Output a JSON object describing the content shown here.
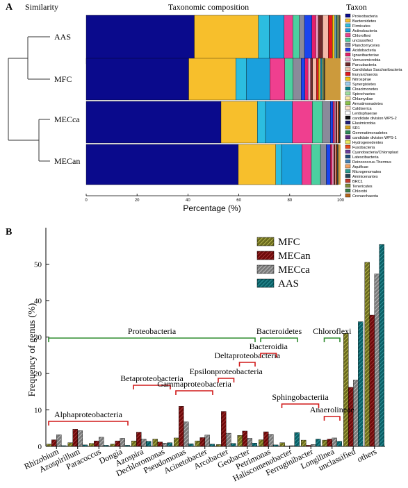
{
  "chart_data": [
    {
      "type": "bar",
      "panel_label": "A",
      "header_left": "Similarity",
      "title": "Taxonomic composition",
      "legend_title": "Taxon",
      "xlabel": "Percentage (%)",
      "xlim": [
        0,
        100
      ],
      "xticks": [
        "0",
        "20",
        "40",
        "60",
        "80",
        "100"
      ],
      "orientation": "horizontal-stacked",
      "legend_position": "right",
      "categories": [
        "AAS",
        "MFC",
        "MECca",
        "MECan"
      ],
      "taxa": [
        {
          "name": "Proteobacteria",
          "color": "#0a0a8c"
        },
        {
          "name": "Bacteroidetes",
          "color": "#f7bf2c"
        },
        {
          "name": "Firmicutes",
          "color": "#2cbde0"
        },
        {
          "name": "Actinobacteria",
          "color": "#1aa0dd"
        },
        {
          "name": "Chloroflexi",
          "color": "#ef3f8f"
        },
        {
          "name": "unclassified",
          "color": "#4bd0a0"
        },
        {
          "name": "Planctomycetes",
          "color": "#8a8a9a"
        },
        {
          "name": "Acidobacteria",
          "color": "#1a44ee"
        },
        {
          "name": "Ignavibacteriae",
          "color": "#e41f6a"
        },
        {
          "name": "Verrucomicrobia",
          "color": "#f6a6cc"
        },
        {
          "name": "Parcubacteria",
          "color": "#6f2a2a"
        },
        {
          "name": "Candidatus Saccharibacteria",
          "color": "#f4b9a8"
        },
        {
          "name": "Euryarchaeota",
          "color": "#e31a1c"
        },
        {
          "name": "Nitrospirae",
          "color": "#f1c40f"
        },
        {
          "name": "Synergistetes",
          "color": "#9ed0f0"
        },
        {
          "name": "Cloacimonetes",
          "color": "#0b7d8c"
        },
        {
          "name": "Spirochaetes",
          "color": "#a0e0a0"
        },
        {
          "name": "Chlamydiae",
          "color": "#fae7a0"
        },
        {
          "name": "Armatimonadetes",
          "color": "#8bc34a"
        },
        {
          "name": "Caldiserica",
          "color": "#ffe2c8"
        },
        {
          "name": "Lentisphaerae",
          "color": "#ffffff"
        },
        {
          "name": "candidate division WPS-2",
          "color": "#111111"
        },
        {
          "name": "Elusimicrobia",
          "color": "#20207a"
        },
        {
          "name": "SR1",
          "color": "#d4a017"
        },
        {
          "name": "Gemmatimonadetes",
          "color": "#2e8b57"
        },
        {
          "name": "candidate division WPS-1",
          "color": "#5a2a82"
        },
        {
          "name": "Hydrogenedentes",
          "color": "#e8e85a"
        },
        {
          "name": "Fusobacteria",
          "color": "#e8491d"
        },
        {
          "name": "Cyanobacteria/Chloroplast",
          "color": "#6a3d9a"
        },
        {
          "name": "Latescibacteria",
          "color": "#1f4e79"
        },
        {
          "name": "Deinococcus-Thermus",
          "color": "#4682b4"
        },
        {
          "name": "Aquificae",
          "color": "#f4a261"
        },
        {
          "name": "Microgenomates",
          "color": "#2a9d8f"
        },
        {
          "name": "Aminicenantes",
          "color": "#264653"
        },
        {
          "name": "BRC1",
          "color": "#c0392b"
        },
        {
          "name": "Tenericutes",
          "color": "#7f8c3a"
        },
        {
          "name": "Chlorobi",
          "color": "#3a7f4a"
        },
        {
          "name": "Crenarchaeota",
          "color": "#b5651d"
        }
      ],
      "series_values": {
        "AAS": [
          42.5,
          25.2,
          4.3,
          5.8,
          3.4,
          2.6,
          2.0,
          2.9,
          1.6,
          0.9,
          1.8,
          2.2,
          1.6,
          0.8,
          0.5,
          0.4,
          0.3,
          0.3,
          0.3,
          0.2,
          0.1,
          0.1
        ],
        "MFC": [
          40.3,
          18.5,
          4.2,
          9.2,
          5.9,
          3.2,
          3.2,
          1.5,
          1.2,
          1.0,
          0.8,
          1.5,
          0.8,
          0.6,
          0.4,
          0.4,
          0.3,
          0.3,
          0.2,
          0.2,
          0.1,
          0.1
        ],
        "MECca": [
          53.0,
          14.3,
          3.2,
          10.6,
          7.8,
          3.9,
          3.2,
          1.0,
          0.6,
          0.5,
          0.5,
          0.4,
          0.3,
          0.2,
          0.2,
          0.1,
          0.1
        ],
        "MECan": [
          59.8,
          14.7,
          2.3,
          8.0,
          3.7,
          3.6,
          2.3,
          1.6,
          0.7,
          0.6,
          0.5,
          0.4,
          0.3,
          0.2,
          0.2,
          0.1,
          0.1
        ]
      }
    },
    {
      "type": "bar",
      "panel_label": "B",
      "ylabel": "Frequency of genus (%)",
      "ylim": [
        0,
        60
      ],
      "yticks": [
        "0",
        "10",
        "20",
        "30",
        "40",
        "50"
      ],
      "legend_position": "top-right",
      "categories": [
        "Rhizobium",
        "Azospirillum",
        "Paracoccus",
        "Dongia",
        "Azospira",
        "Dechloromonas",
        "Pseudomonas",
        "Acinetobacter",
        "Arcobacter",
        "Geobacter",
        "Petrimonas",
        "Haliscomenobacter",
        "Ferruginibacter",
        "Longilinea",
        "unclassified",
        "others"
      ],
      "series": [
        {
          "name": "MFC",
          "color": "#6b6b1e",
          "hatch": "#c8c85a",
          "values": [
            0.6,
            1.0,
            0.8,
            0.6,
            1.5,
            2.0,
            2.3,
            1.5,
            0.5,
            3.0,
            1.8,
            1.0,
            1.7,
            1.7,
            31.0,
            50.5
          ]
        },
        {
          "name": "MECan",
          "color": "#6e0a0a",
          "hatch": "#b04040",
          "values": [
            1.8,
            4.7,
            1.5,
            1.5,
            3.9,
            1.2,
            11.0,
            2.4,
            9.6,
            4.2,
            4.0,
            0.1,
            0.3,
            2.0,
            16.2,
            36.0
          ]
        },
        {
          "name": "MECca",
          "color": "#7a7a7a",
          "hatch": "#cfcfcf",
          "values": [
            3.2,
            4.3,
            2.5,
            2.2,
            2.0,
            0.9,
            6.7,
            3.1,
            3.6,
            2.2,
            3.3,
            0.2,
            0.5,
            2.3,
            18.2,
            47.3
          ]
        },
        {
          "name": "AAS",
          "color": "#0a5f66",
          "hatch": "#3aa3aa",
          "values": [
            0.2,
            0.4,
            0.3,
            0.3,
            1.4,
            1.0,
            0.7,
            0.6,
            0.8,
            0.9,
            0.4,
            3.8,
            2.0,
            1.4,
            34.2,
            55.4
          ]
        }
      ],
      "groups": [
        {
          "label": "Proteobacteria",
          "from": 0,
          "to": 9,
          "color": "#2e8b2e"
        },
        {
          "label": "Bacteroidetes",
          "from": 10,
          "to": 11,
          "color": "#2e8b2e"
        },
        {
          "label": "Chloroflexi",
          "from": 13,
          "to": 13,
          "color": "#2e8b2e"
        },
        {
          "label": "Alphaproteobacteria",
          "from": 0,
          "to": 3,
          "color": "#d01818"
        },
        {
          "label": "Betaproteobacteria",
          "from": 4,
          "to": 5,
          "color": "#d01818"
        },
        {
          "label": "Gammaproteobacteria",
          "from": 6,
          "to": 7,
          "color": "#d01818"
        },
        {
          "label": "Epsilonproteobacteria",
          "from": 8,
          "to": 8,
          "color": "#d01818"
        },
        {
          "label": "Deltaproteobacteria",
          "from": 9,
          "to": 9,
          "color": "#d01818"
        },
        {
          "label": "Bacteroidia",
          "from": 10,
          "to": 10,
          "color": "#d01818"
        },
        {
          "label": "Sphingobacteriia",
          "from": 11,
          "to": 12,
          "color": "#d01818"
        },
        {
          "label": "Anaerolineae",
          "from": 13,
          "to": 13,
          "color": "#d01818"
        }
      ]
    }
  ]
}
